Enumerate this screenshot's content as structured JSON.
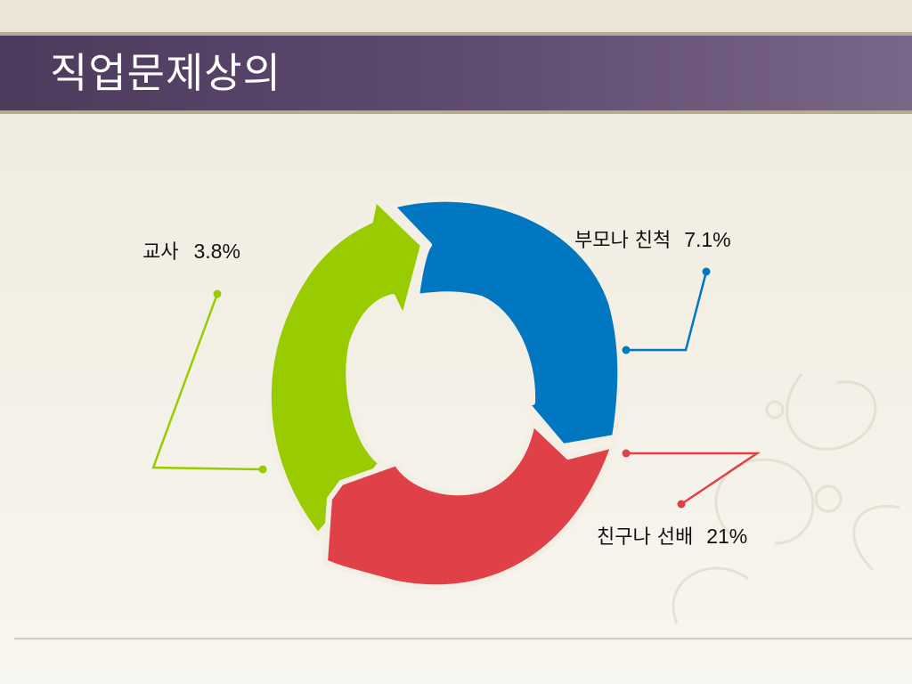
{
  "slide": {
    "title": "직업문제상의"
  },
  "segments": [
    {
      "label": "교사",
      "value": "3.8%",
      "color": "#99cc00"
    },
    {
      "label": "부모나 친척",
      "value": "7.1%",
      "color": "#0077c0"
    },
    {
      "label": "친구나 선배",
      "value": "21%",
      "color": "#e04048"
    }
  ]
}
